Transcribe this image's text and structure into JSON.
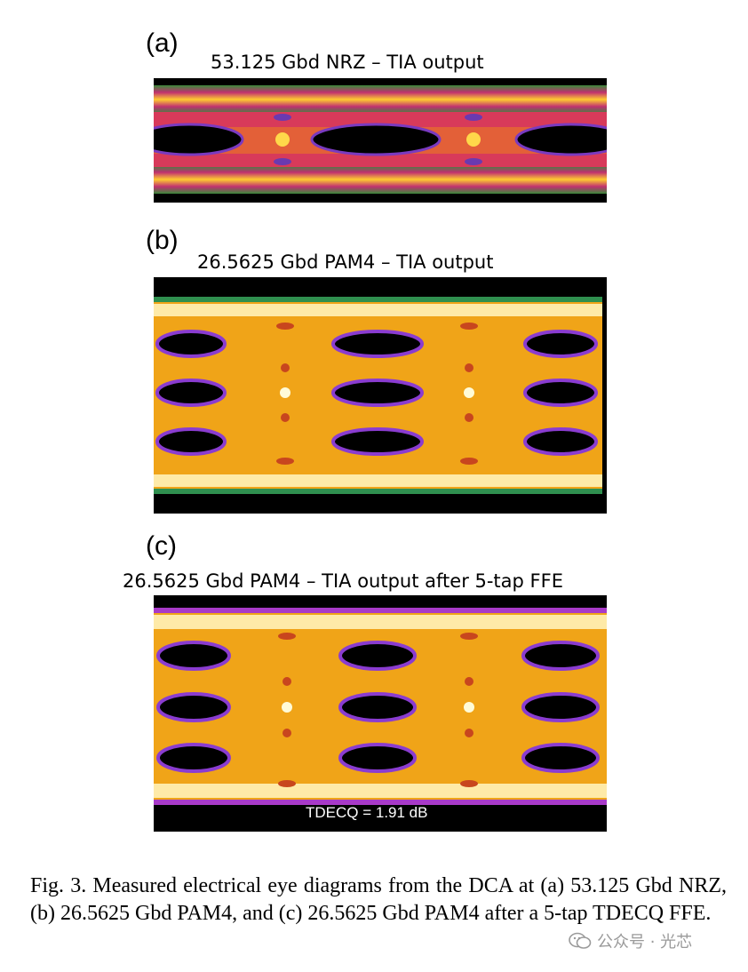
{
  "panels": [
    {
      "label": "(a)",
      "title": "53.125 Gbd NRZ – TIA output",
      "levels": 2
    },
    {
      "label": "(b)",
      "title": "26.5625 Gbd PAM4 – TIA output",
      "levels": 4
    },
    {
      "label": "(c)",
      "title": "26.5625 Gbd PAM4 – TIA output after 5-tap FFE",
      "levels": 4,
      "annotation": "TDECQ = 1.91 dB"
    }
  ],
  "caption": "Fig. 3.  Measured electrical eye diagrams from the DCA at (a) 53.125 Gbd NRZ, (b) 26.5625 Gbd PAM4, and (c) 26.5625 Gbd PAM4 after a 5-tap TDECQ FFE.",
  "watermark": "公众号 · 光芯",
  "watermark_icon": "wechat-icon"
}
